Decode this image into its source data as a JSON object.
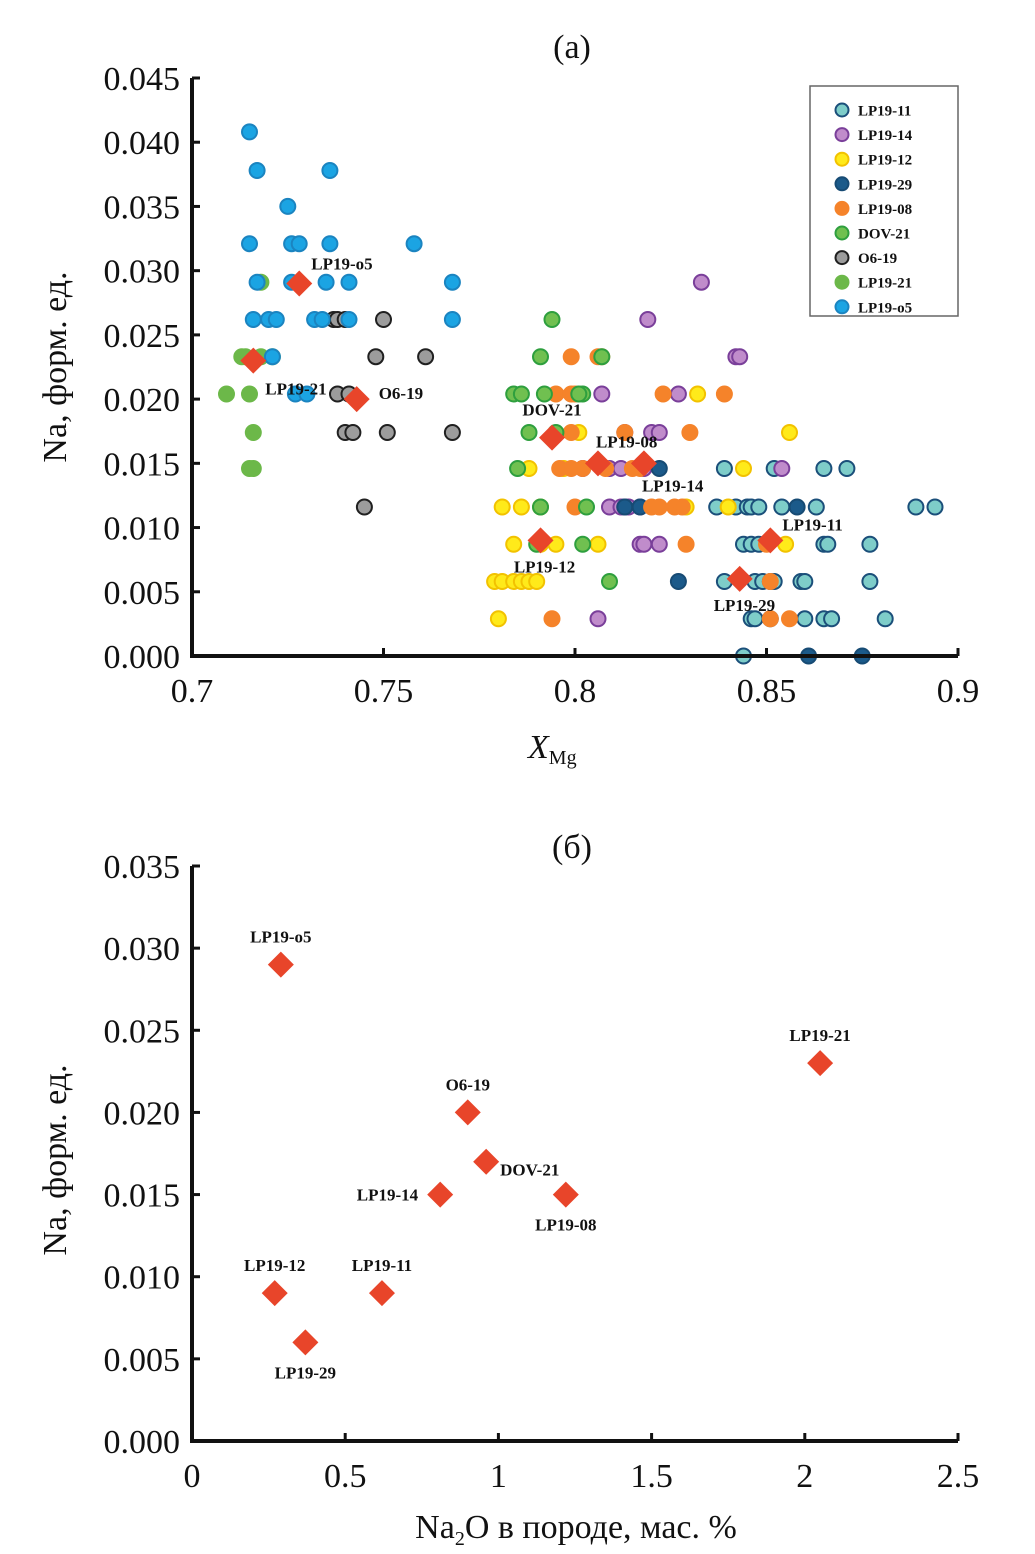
{
  "chart_data": [
    {
      "id": "a",
      "type": "scatter",
      "panel_label": "(a)",
      "xlabel_main": "X",
      "xlabel_sub": "Mg",
      "ylabel": "Na, форм. ед.",
      "xlim": [
        0.7,
        0.9
      ],
      "ylim": [
        0,
        0.045
      ],
      "xticks": [
        0.7,
        0.75,
        0.8,
        0.85,
        0.9
      ],
      "xtick_labels": [
        "0.7",
        "0.75",
        "0.8",
        "0.85",
        "0.9"
      ],
      "yticks": [
        0,
        0.005,
        0.01,
        0.015,
        0.02,
        0.025,
        0.03,
        0.035,
        0.04,
        0.045
      ],
      "ytick_labels": [
        "0.000",
        "0.005",
        "0.010",
        "0.015",
        "0.020",
        "0.025",
        "0.030",
        "0.035",
        "0.040",
        "0.045"
      ],
      "grid": false,
      "legend_position": "top-right",
      "series": [
        {
          "name": "LP19-11",
          "fill": "#7ecdc9",
          "stroke": "#1b4f7a",
          "points": [
            [
              0.839,
              0.0146
            ],
            [
              0.852,
              0.0146
            ],
            [
              0.865,
              0.0146
            ],
            [
              0.871,
              0.0146
            ],
            [
              0.837,
              0.0116
            ],
            [
              0.842,
              0.0116
            ],
            [
              0.845,
              0.0116
            ],
            [
              0.846,
              0.0116
            ],
            [
              0.848,
              0.0116
            ],
            [
              0.854,
              0.0116
            ],
            [
              0.863,
              0.0116
            ],
            [
              0.889,
              0.0116
            ],
            [
              0.894,
              0.0116
            ],
            [
              0.844,
              0.0087
            ],
            [
              0.846,
              0.0087
            ],
            [
              0.848,
              0.0087
            ],
            [
              0.865,
              0.0087
            ],
            [
              0.866,
              0.0087
            ],
            [
              0.877,
              0.0087
            ],
            [
              0.839,
              0.0058
            ],
            [
              0.847,
              0.0058
            ],
            [
              0.849,
              0.0058
            ],
            [
              0.851,
              0.0058
            ],
            [
              0.852,
              0.0058
            ],
            [
              0.859,
              0.0058
            ],
            [
              0.86,
              0.0058
            ],
            [
              0.877,
              0.0058
            ],
            [
              0.846,
              0.0029
            ],
            [
              0.847,
              0.0029
            ],
            [
              0.86,
              0.0029
            ],
            [
              0.865,
              0.0029
            ],
            [
              0.867,
              0.0029
            ],
            [
              0.881,
              0.0029
            ],
            [
              0.844,
              0.0
            ]
          ]
        },
        {
          "name": "LP19-14",
          "fill": "#c08ccb",
          "stroke": "#7a3f9a",
          "points": [
            [
              0.833,
              0.0291
            ],
            [
              0.819,
              0.0262
            ],
            [
              0.842,
              0.0233
            ],
            [
              0.843,
              0.0233
            ],
            [
              0.807,
              0.0204
            ],
            [
              0.827,
              0.0204
            ],
            [
              0.813,
              0.0174
            ],
            [
              0.82,
              0.0174
            ],
            [
              0.822,
              0.0174
            ],
            [
              0.802,
              0.0146
            ],
            [
              0.809,
              0.0146
            ],
            [
              0.812,
              0.0146
            ],
            [
              0.818,
              0.0146
            ],
            [
              0.854,
              0.0146
            ],
            [
              0.809,
              0.0116
            ],
            [
              0.812,
              0.0116
            ],
            [
              0.813,
              0.0116
            ],
            [
              0.814,
              0.0116
            ],
            [
              0.817,
              0.0116
            ],
            [
              0.817,
              0.0087
            ],
            [
              0.818,
              0.0087
            ],
            [
              0.822,
              0.0087
            ],
            [
              0.806,
              0.0029
            ]
          ]
        },
        {
          "name": "LP19-12",
          "fill": "#ffea1a",
          "stroke": "#f2c200",
          "points": [
            [
              0.832,
              0.0204
            ],
            [
              0.801,
              0.0174
            ],
            [
              0.856,
              0.0174
            ],
            [
              0.788,
              0.0146
            ],
            [
              0.797,
              0.0146
            ],
            [
              0.844,
              0.0146
            ],
            [
              0.781,
              0.0116
            ],
            [
              0.786,
              0.0116
            ],
            [
              0.791,
              0.0116
            ],
            [
              0.829,
              0.0116
            ],
            [
              0.84,
              0.0116
            ],
            [
              0.784,
              0.0087
            ],
            [
              0.791,
              0.0087
            ],
            [
              0.795,
              0.0087
            ],
            [
              0.806,
              0.0087
            ],
            [
              0.855,
              0.0087
            ],
            [
              0.779,
              0.0058
            ],
            [
              0.781,
              0.0058
            ],
            [
              0.784,
              0.0058
            ],
            [
              0.786,
              0.0058
            ],
            [
              0.788,
              0.0058
            ],
            [
              0.79,
              0.0058
            ],
            [
              0.78,
              0.0029
            ]
          ]
        },
        {
          "name": "LP19-29",
          "fill": "#1b5a8a",
          "stroke": "#174b74",
          "points": [
            [
              0.822,
              0.0146
            ],
            [
              0.813,
              0.0116
            ],
            [
              0.817,
              0.0116
            ],
            [
              0.858,
              0.0116
            ],
            [
              0.827,
              0.0058
            ],
            [
              0.851,
              0.0029
            ],
            [
              0.861,
              0.0
            ],
            [
              0.875,
              0.0
            ]
          ]
        },
        {
          "name": "LP19-08",
          "fill": "#f5832a",
          "stroke": "#f5832a",
          "points": [
            [
              0.799,
              0.0233
            ],
            [
              0.806,
              0.0233
            ],
            [
              0.807,
              0.0233
            ],
            [
              0.795,
              0.0204
            ],
            [
              0.799,
              0.0204
            ],
            [
              0.8,
              0.0204
            ],
            [
              0.823,
              0.0204
            ],
            [
              0.839,
              0.0204
            ],
            [
              0.799,
              0.0174
            ],
            [
              0.813,
              0.0174
            ],
            [
              0.83,
              0.0174
            ],
            [
              0.796,
              0.0146
            ],
            [
              0.799,
              0.0146
            ],
            [
              0.802,
              0.0146
            ],
            [
              0.808,
              0.0146
            ],
            [
              0.815,
              0.0146
            ],
            [
              0.817,
              0.0146
            ],
            [
              0.8,
              0.0116
            ],
            [
              0.82,
              0.0116
            ],
            [
              0.822,
              0.0116
            ],
            [
              0.826,
              0.0116
            ],
            [
              0.828,
              0.0116
            ],
            [
              0.829,
              0.0087
            ],
            [
              0.85,
              0.0087
            ],
            [
              0.851,
              0.0058
            ],
            [
              0.851,
              0.0029
            ],
            [
              0.856,
              0.0029
            ],
            [
              0.794,
              0.0029
            ]
          ]
        },
        {
          "name": "DOV-21",
          "fill": "#70c050",
          "stroke": "#2e9f3e",
          "points": [
            [
              0.794,
              0.0262
            ],
            [
              0.791,
              0.0233
            ],
            [
              0.807,
              0.0233
            ],
            [
              0.784,
              0.0204
            ],
            [
              0.786,
              0.0204
            ],
            [
              0.792,
              0.0204
            ],
            [
              0.802,
              0.0204
            ],
            [
              0.801,
              0.0204
            ],
            [
              0.788,
              0.0174
            ],
            [
              0.795,
              0.0174
            ],
            [
              0.785,
              0.0146
            ],
            [
              0.803,
              0.0116
            ],
            [
              0.791,
              0.0116
            ],
            [
              0.79,
              0.0087
            ],
            [
              0.802,
              0.0087
            ],
            [
              0.809,
              0.0058
            ]
          ]
        },
        {
          "name": "O6-19",
          "fill": "#9c9c9c",
          "stroke": "#202020",
          "points": [
            [
              0.737,
              0.0262
            ],
            [
              0.738,
              0.0262
            ],
            [
              0.74,
              0.0262
            ],
            [
              0.75,
              0.0262
            ],
            [
              0.748,
              0.0233
            ],
            [
              0.761,
              0.0233
            ],
            [
              0.738,
              0.0204
            ],
            [
              0.741,
              0.0204
            ],
            [
              0.74,
              0.0174
            ],
            [
              0.742,
              0.0174
            ],
            [
              0.751,
              0.0174
            ],
            [
              0.768,
              0.0174
            ],
            [
              0.745,
              0.0116
            ]
          ]
        },
        {
          "name": "LP19-21",
          "fill": "#6cb849",
          "stroke": "#6cb849",
          "points": [
            [
              0.718,
              0.0291
            ],
            [
              0.713,
              0.0233
            ],
            [
              0.714,
              0.0233
            ],
            [
              0.718,
              0.0233
            ],
            [
              0.721,
              0.0233
            ],
            [
              0.709,
              0.0204
            ],
            [
              0.715,
              0.0204
            ],
            [
              0.716,
              0.0174
            ],
            [
              0.715,
              0.0146
            ],
            [
              0.716,
              0.0146
            ]
          ]
        },
        {
          "name": "LP19-o5",
          "fill": "#1ba4e3",
          "stroke": "#1b84c0",
          "points": [
            [
              0.715,
              0.0408
            ],
            [
              0.717,
              0.0378
            ],
            [
              0.736,
              0.0378
            ],
            [
              0.725,
              0.035
            ],
            [
              0.715,
              0.0321
            ],
            [
              0.726,
              0.0321
            ],
            [
              0.728,
              0.0321
            ],
            [
              0.736,
              0.0321
            ],
            [
              0.758,
              0.0321
            ],
            [
              0.717,
              0.0291
            ],
            [
              0.726,
              0.0291
            ],
            [
              0.735,
              0.0291
            ],
            [
              0.741,
              0.0291
            ],
            [
              0.768,
              0.0291
            ],
            [
              0.716,
              0.0262
            ],
            [
              0.72,
              0.0262
            ],
            [
              0.722,
              0.0262
            ],
            [
              0.732,
              0.0262
            ],
            [
              0.734,
              0.0262
            ],
            [
              0.741,
              0.0262
            ],
            [
              0.768,
              0.0262
            ],
            [
              0.721,
              0.0233
            ],
            [
              0.727,
              0.0204
            ],
            [
              0.73,
              0.0204
            ]
          ]
        }
      ],
      "averages": {
        "name": "mean",
        "color": "#e8452a",
        "points": [
          {
            "label": "LP19-o5",
            "x": 0.728,
            "y": 0.029
          },
          {
            "label": "LP19-21",
            "x": 0.716,
            "y": 0.023
          },
          {
            "label": "O6-19",
            "x": 0.743,
            "y": 0.02
          },
          {
            "label": "DOV-21",
            "x": 0.794,
            "y": 0.017
          },
          {
            "label": "LP19-08",
            "x": 0.806,
            "y": 0.015
          },
          {
            "label": "LP19-14",
            "x": 0.818,
            "y": 0.015
          },
          {
            "label": "LP19-12",
            "x": 0.791,
            "y": 0.009
          },
          {
            "label": "LP19-11",
            "x": 0.851,
            "y": 0.009
          },
          {
            "label": "LP19-29",
            "x": 0.843,
            "y": 0.006
          }
        ]
      }
    },
    {
      "id": "b",
      "type": "scatter",
      "panel_label": "(б)",
      "xlabel": "Na₂O в породе, мас. %",
      "xlabel_parts": [
        "Na",
        "2",
        "O в породе, мас. %"
      ],
      "ylabel": "Na, форм. ед.",
      "xlim": [
        0,
        2.5
      ],
      "ylim": [
        0,
        0.035
      ],
      "xticks": [
        0,
        0.5,
        1,
        1.5,
        2,
        2.5
      ],
      "xtick_labels": [
        "0",
        "0.5",
        "1",
        "1.5",
        "2",
        "2.5"
      ],
      "yticks": [
        0,
        0.005,
        0.01,
        0.015,
        0.02,
        0.025,
        0.03,
        0.035
      ],
      "ytick_labels": [
        "0.000",
        "0.005",
        "0.010",
        "0.015",
        "0.020",
        "0.025",
        "0.030",
        "0.035"
      ],
      "grid": false,
      "series": [
        {
          "name": "mean",
          "color": "#e8452a",
          "points": [
            {
              "label": "LP19-o5",
              "x": 0.29,
              "y": 0.029,
              "label_pos": "above"
            },
            {
              "label": "LP19-21",
              "x": 2.05,
              "y": 0.023,
              "label_pos": "above"
            },
            {
              "label": "O6-19",
              "x": 0.9,
              "y": 0.02,
              "label_pos": "above"
            },
            {
              "label": "DOV-21",
              "x": 0.96,
              "y": 0.017,
              "label_pos": "below-right"
            },
            {
              "label": "LP19-14",
              "x": 0.81,
              "y": 0.015,
              "label_pos": "left"
            },
            {
              "label": "LP19-08",
              "x": 1.22,
              "y": 0.015,
              "label_pos": "below"
            },
            {
              "label": "LP19-12",
              "x": 0.27,
              "y": 0.009,
              "label_pos": "above"
            },
            {
              "label": "LP19-11",
              "x": 0.62,
              "y": 0.009,
              "label_pos": "above"
            },
            {
              "label": "LP19-29",
              "x": 0.37,
              "y": 0.006,
              "label_pos": "below"
            }
          ]
        }
      ]
    }
  ]
}
